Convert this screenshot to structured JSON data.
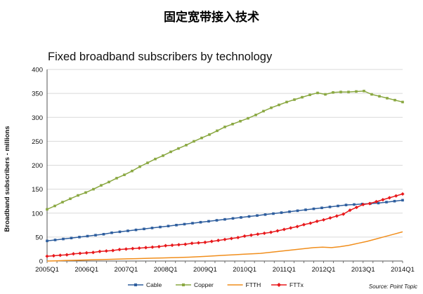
{
  "page": {
    "heading": "固定宽带接入技术"
  },
  "chart_data": {
    "type": "line",
    "title": "Fixed broadband subscribers by technology",
    "ylabel": "Broadband subscribers - millions",
    "xlabel": "",
    "ylim": [
      0,
      400
    ],
    "yticks": [
      0,
      50,
      100,
      150,
      200,
      250,
      300,
      350,
      400
    ],
    "x_tick_labels": [
      "2005Q1",
      "2006Q1",
      "2007Q1",
      "2008Q1",
      "2009Q1",
      "2010Q1",
      "2011Q1",
      "2012Q1",
      "2013Q1",
      "2014Q1"
    ],
    "grid": true,
    "legend_position": "bottom",
    "source": "Source: Point Topic",
    "series": [
      {
        "name": "Cable",
        "color": "#2e5e9e",
        "marker": "square",
        "values": [
          42,
          44,
          46,
          48,
          50,
          52,
          54,
          56,
          59,
          61,
          63,
          65,
          67,
          69,
          71,
          73,
          75,
          77,
          79,
          81,
          83,
          85,
          87,
          89,
          91,
          93,
          95,
          97,
          99,
          101,
          103,
          105,
          107,
          109,
          111,
          113,
          115,
          117,
          118,
          119,
          120,
          121,
          123,
          125,
          127
        ]
      },
      {
        "name": "Copper",
        "color": "#8aa842",
        "marker": "square",
        "values": [
          108,
          115,
          123,
          130,
          137,
          143,
          150,
          158,
          165,
          173,
          180,
          188,
          197,
          205,
          213,
          220,
          228,
          235,
          242,
          250,
          257,
          264,
          272,
          280,
          286,
          292,
          298,
          305,
          313,
          320,
          326,
          332,
          337,
          342,
          347,
          351,
          348,
          352,
          353,
          353,
          354,
          355,
          348,
          344,
          340,
          336,
          332
        ]
      },
      {
        "name": "FTTH",
        "color": "#f18e1c",
        "marker": "none",
        "values": [
          0,
          0.5,
          1,
          1.5,
          2,
          2.5,
          3,
          3.5,
          4,
          4.5,
          5,
          5.5,
          6,
          6.5,
          7,
          7.5,
          8,
          9,
          10,
          11,
          12,
          13,
          14,
          15,
          16,
          18,
          20,
          22,
          24,
          26,
          28,
          29,
          28,
          30,
          33,
          37,
          41,
          46,
          51,
          56,
          61
        ]
      },
      {
        "name": "FTTx",
        "color": "#e8191c",
        "marker": "diamond",
        "values": [
          10,
          11,
          12,
          13,
          15,
          16,
          17,
          18,
          20,
          21,
          22,
          24,
          25,
          26,
          27,
          28,
          29,
          30,
          32,
          33,
          34,
          35,
          37,
          38,
          39,
          41,
          43,
          45,
          47,
          49,
          52,
          54,
          56,
          58,
          60,
          63,
          66,
          69,
          72,
          76,
          79,
          83,
          86,
          90,
          94,
          98,
          106,
          112,
          118,
          120,
          124,
          128,
          132,
          136,
          140
        ]
      }
    ]
  }
}
